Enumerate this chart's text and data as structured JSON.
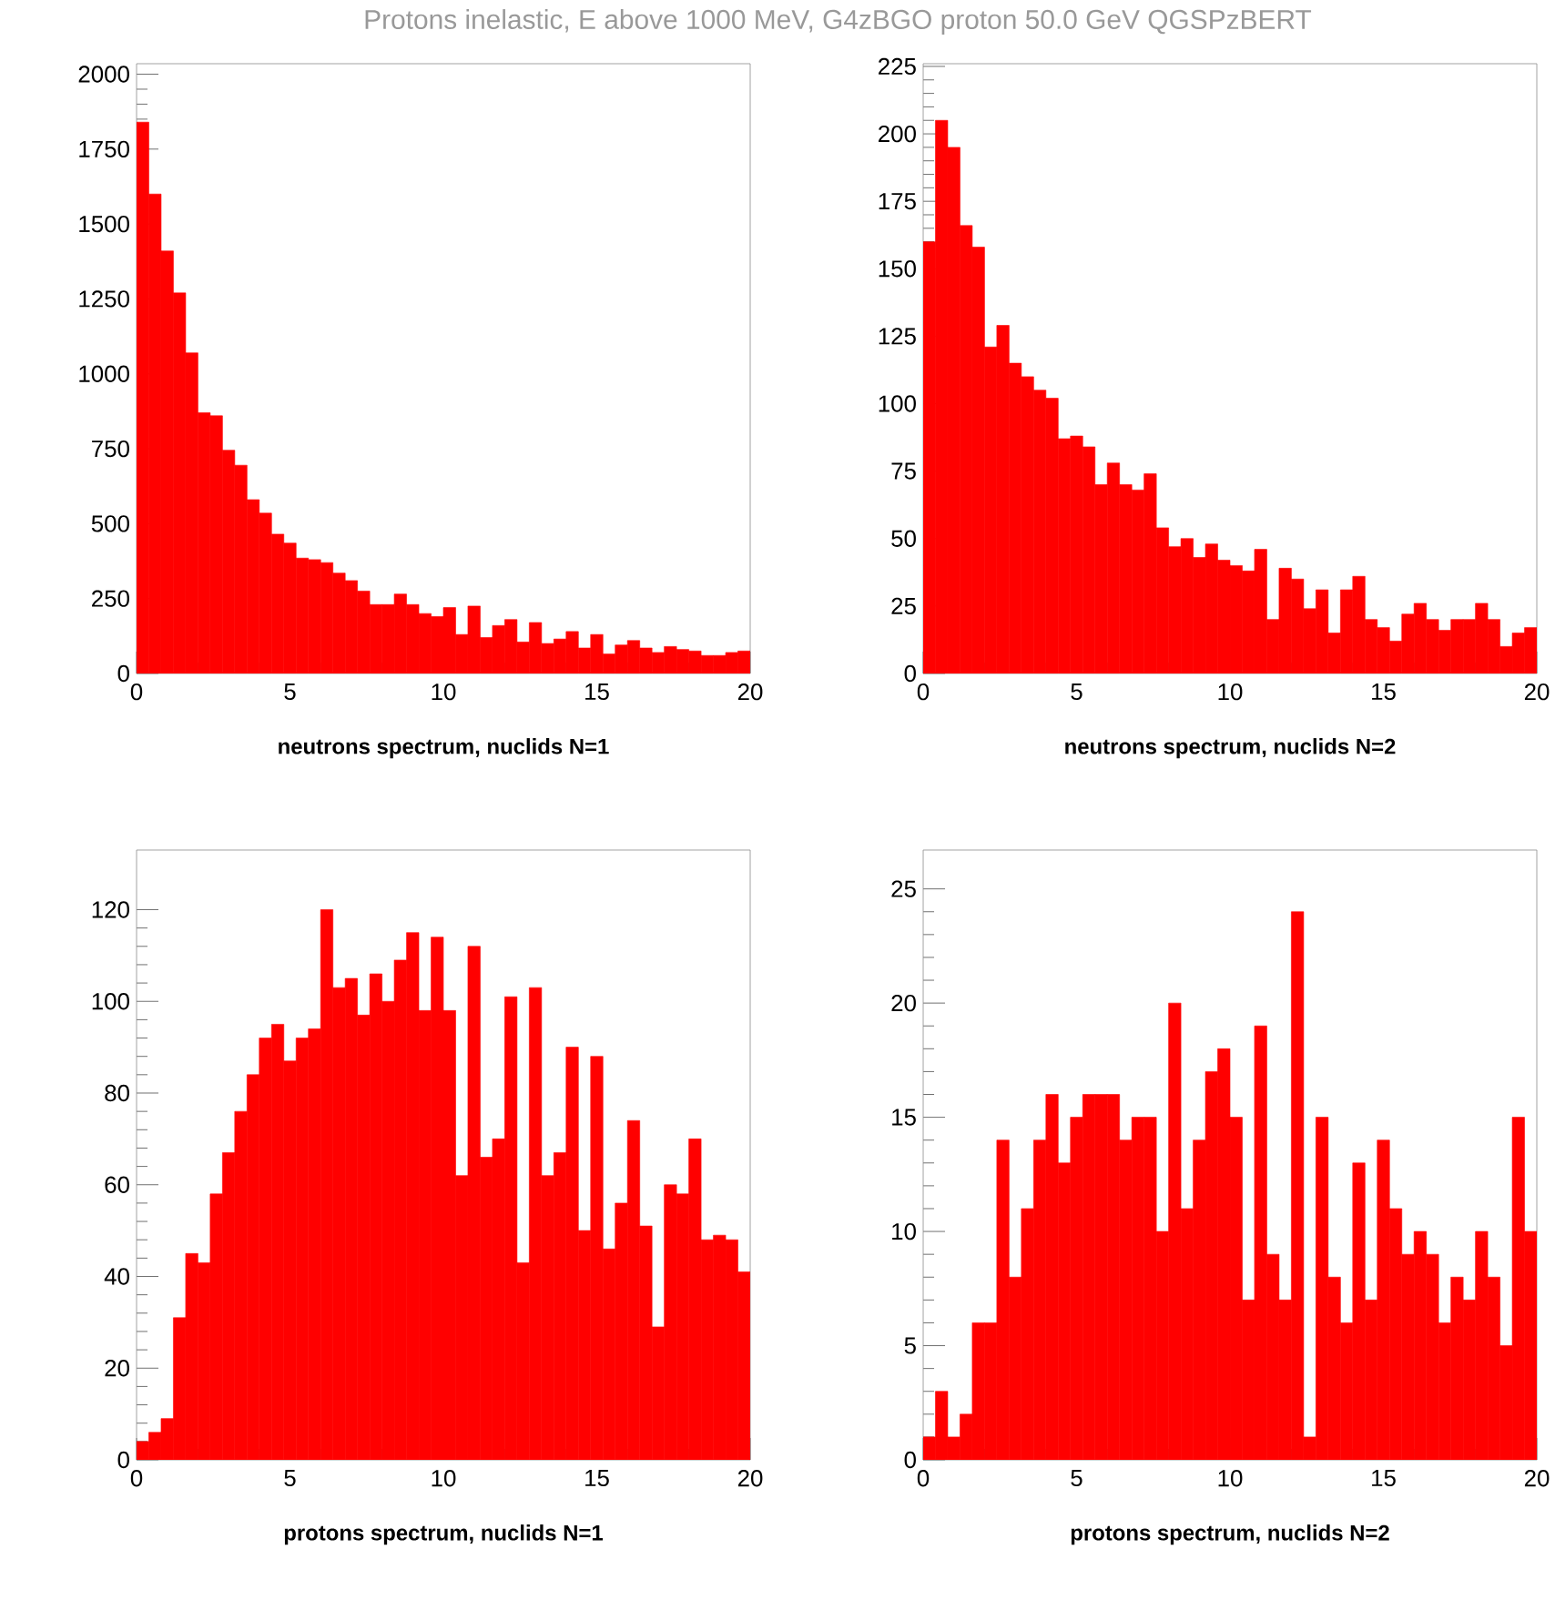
{
  "chart_data": [
    {
      "type": "histogram",
      "title": "Protons inelastic, E above 1000 MeV,  G4zBGO proton 50.0 GeV QGSPzBERT",
      "xlabel": "neutrons spectrum, nuclids N=1",
      "color": "#ff0000",
      "xlim": [
        0,
        20
      ],
      "ylim": [
        0,
        2035
      ],
      "xticks": [
        0,
        5,
        10,
        15,
        20
      ],
      "yticks": [
        0,
        250,
        500,
        750,
        1000,
        1250,
        1500,
        1750,
        2000
      ],
      "bins": [
        0,
        0.4,
        0.8,
        1.2,
        1.6,
        2,
        2.4,
        2.8,
        3.2,
        3.6,
        4,
        4.4,
        4.8,
        5.2,
        5.6,
        6,
        6.4,
        6.8,
        7.2,
        7.6,
        8,
        8.4,
        8.8,
        9.2,
        9.6,
        10,
        10.4,
        10.8,
        11.2,
        11.6,
        12,
        12.4,
        12.8,
        13.2,
        13.6,
        14,
        14.4,
        14.8,
        15.2,
        15.6,
        16,
        16.4,
        16.8,
        17.2,
        17.6,
        18,
        18.4,
        18.8,
        19.2,
        19.6,
        20
      ],
      "values": [
        1840,
        1600,
        1410,
        1270,
        1070,
        870,
        860,
        745,
        695,
        580,
        535,
        465,
        435,
        385,
        380,
        370,
        335,
        310,
        275,
        230,
        230,
        265,
        230,
        200,
        190,
        220,
        130,
        225,
        120,
        160,
        180,
        105,
        170,
        100,
        115,
        140,
        85,
        130,
        65,
        95,
        110,
        85,
        70,
        90,
        80,
        75,
        60,
        60,
        70,
        75
      ]
    },
    {
      "type": "histogram",
      "xlabel": "neutrons spectrum, nuclids N=2",
      "color": "#ff0000",
      "xlim": [
        0,
        20
      ],
      "ylim": [
        0,
        226
      ],
      "xticks": [
        0,
        5,
        10,
        15,
        20
      ],
      "yticks": [
        0,
        25,
        50,
        75,
        100,
        125,
        150,
        175,
        200,
        225
      ],
      "bins": [
        0,
        0.4,
        0.8,
        1.2,
        1.6,
        2,
        2.4,
        2.8,
        3.2,
        3.6,
        4,
        4.4,
        4.8,
        5.2,
        5.6,
        6,
        6.4,
        6.8,
        7.2,
        7.6,
        8,
        8.4,
        8.8,
        9.2,
        9.6,
        10,
        10.4,
        10.8,
        11.2,
        11.6,
        12,
        12.4,
        12.8,
        13.2,
        13.6,
        14,
        14.4,
        14.8,
        15.2,
        15.6,
        16,
        16.4,
        16.8,
        17.2,
        17.6,
        18,
        18.4,
        18.8,
        19.2,
        19.6,
        20
      ],
      "values": [
        160,
        205,
        195,
        166,
        158,
        121,
        129,
        115,
        110,
        105,
        102,
        87,
        88,
        84,
        70,
        78,
        70,
        68,
        74,
        54,
        47,
        50,
        43,
        48,
        42,
        40,
        38,
        46,
        20,
        39,
        35,
        24,
        31,
        15,
        31,
        36,
        20,
        17,
        12,
        22,
        26,
        20,
        16,
        20,
        20,
        26,
        20,
        10,
        15,
        17
      ]
    },
    {
      "type": "histogram",
      "xlabel": "protons spectrum, nuclids N=1",
      "color": "#ff0000",
      "xlim": [
        0,
        20
      ],
      "ylim": [
        0,
        133
      ],
      "xticks": [
        0,
        5,
        10,
        15,
        20
      ],
      "yticks": [
        0,
        20,
        40,
        60,
        80,
        100,
        120
      ],
      "bins": [
        0,
        0.4,
        0.8,
        1.2,
        1.6,
        2,
        2.4,
        2.8,
        3.2,
        3.6,
        4,
        4.4,
        4.8,
        5.2,
        5.6,
        6,
        6.4,
        6.8,
        7.2,
        7.6,
        8,
        8.4,
        8.8,
        9.2,
        9.6,
        10,
        10.4,
        10.8,
        11.2,
        11.6,
        12,
        12.4,
        12.8,
        13.2,
        13.6,
        14,
        14.4,
        14.8,
        15.2,
        15.6,
        16,
        16.4,
        16.8,
        17.2,
        17.6,
        18,
        18.4,
        18.8,
        19.2,
        19.6,
        20
      ],
      "values": [
        4,
        6,
        9,
        31,
        45,
        43,
        58,
        67,
        76,
        84,
        92,
        95,
        87,
        92,
        94,
        120,
        103,
        105,
        97,
        106,
        100,
        109,
        115,
        98,
        114,
        98,
        62,
        112,
        66,
        70,
        101,
        43,
        103,
        62,
        67,
        90,
        50,
        88,
        46,
        56,
        74,
        51,
        29,
        60,
        58,
        70,
        48,
        49,
        48,
        41
      ]
    },
    {
      "type": "histogram",
      "xlabel": "protons spectrum, nuclids N=2",
      "color": "#ff0000",
      "xlim": [
        0,
        20
      ],
      "ylim": [
        0,
        26.7
      ],
      "xticks": [
        0,
        5,
        10,
        15,
        20
      ],
      "yticks": [
        0,
        5,
        10,
        15,
        20,
        25
      ],
      "bins": [
        0,
        0.4,
        0.8,
        1.2,
        1.6,
        2,
        2.4,
        2.8,
        3.2,
        3.6,
        4,
        4.4,
        4.8,
        5.2,
        5.6,
        6,
        6.4,
        6.8,
        7.2,
        7.6,
        8,
        8.4,
        8.8,
        9.2,
        9.6,
        10,
        10.4,
        10.8,
        11.2,
        11.6,
        12,
        12.4,
        12.8,
        13.2,
        13.6,
        14,
        14.4,
        14.8,
        15.2,
        15.6,
        16,
        16.4,
        16.8,
        17.2,
        17.6,
        18,
        18.4,
        18.8,
        19.2,
        19.6,
        20
      ],
      "values": [
        1,
        3,
        1,
        2,
        6,
        6,
        14,
        8,
        11,
        14,
        16,
        13,
        15,
        16,
        16,
        16,
        14,
        15,
        15,
        10,
        20,
        11,
        14,
        17,
        18,
        15,
        7,
        19,
        9,
        7,
        24,
        1,
        15,
        8,
        6,
        13,
        7,
        14,
        11,
        9,
        10,
        9,
        6,
        8,
        7,
        10,
        8,
        5,
        15,
        10
      ]
    }
  ]
}
